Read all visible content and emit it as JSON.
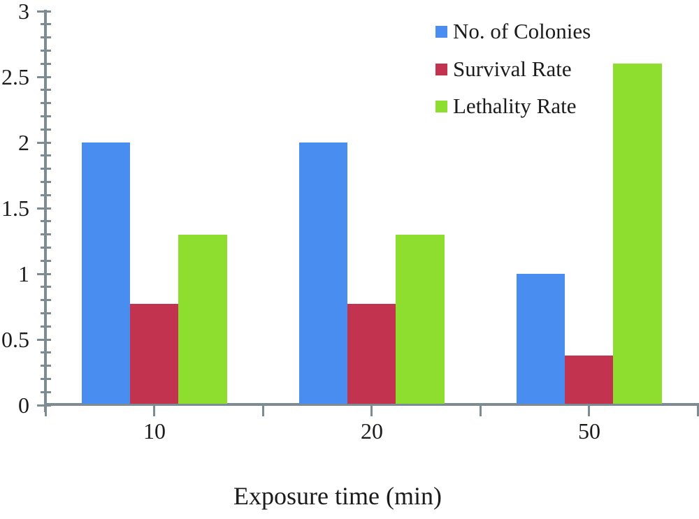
{
  "colors": {
    "axis": "#7d8b92",
    "text": "#1b1b1b",
    "background": "#ffffff"
  },
  "chart_data": {
    "type": "bar",
    "title": "",
    "xlabel": "Exposure time (min)",
    "ylabel": "",
    "categories": [
      "10",
      "20",
      "50"
    ],
    "series": [
      {
        "name": "No. of Colonies",
        "color": "#4a8df0",
        "values": [
          2,
          2,
          1
        ]
      },
      {
        "name": "Survival Rate",
        "color": "#c23350",
        "values": [
          0.77,
          0.77,
          0.38
        ]
      },
      {
        "name": "Lethality Rate",
        "color": "#8dde2e",
        "values": [
          1.3,
          1.3,
          2.6
        ]
      }
    ],
    "ylim": [
      0,
      3
    ],
    "y_major_step": 0.5,
    "y_minor_step": 0.1,
    "y_tick_labels": [
      "0",
      "0.5",
      "1",
      "1.5",
      "2",
      "2.5",
      "3"
    ],
    "legend_position": "top-right",
    "grid": false
  }
}
